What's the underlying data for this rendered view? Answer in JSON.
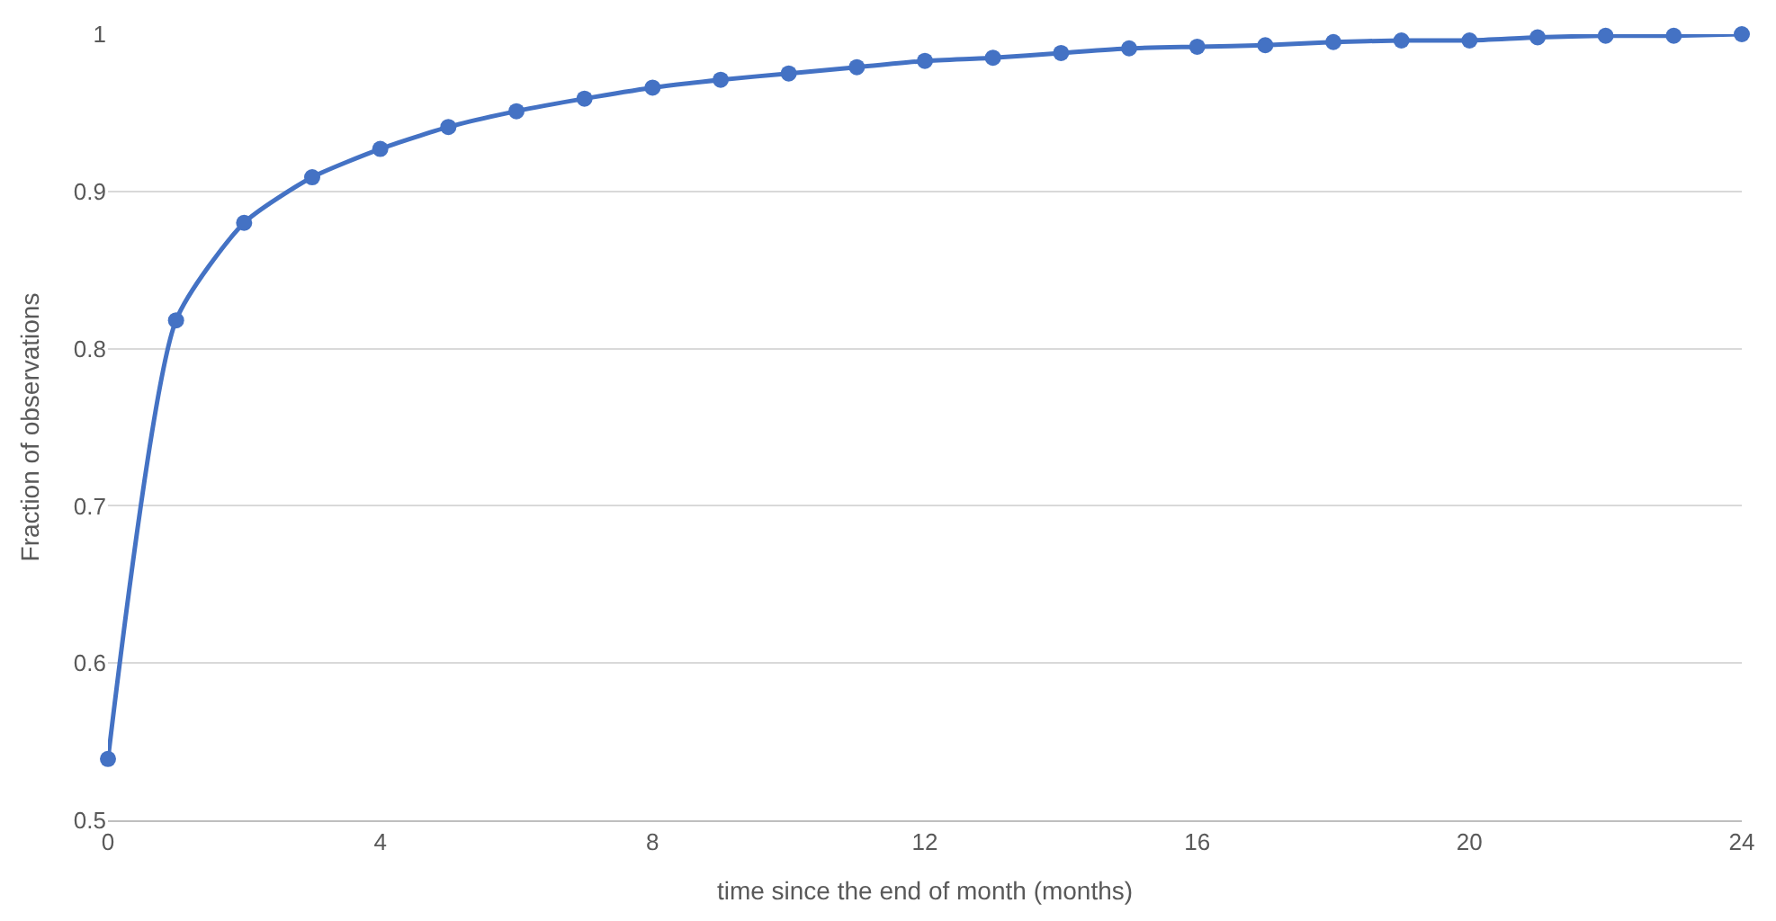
{
  "chart_data": {
    "type": "line",
    "xlabel": "time since the end of month (months)",
    "ylabel": "Fraction of observations",
    "x": [
      0,
      1,
      2,
      3,
      4,
      5,
      6,
      7,
      8,
      9,
      10,
      11,
      12,
      13,
      14,
      15,
      16,
      17,
      18,
      19,
      20,
      21,
      22,
      23,
      24
    ],
    "series": [
      {
        "color": "#4472c4",
        "values": [
          0.539,
          0.818,
          0.88,
          0.909,
          0.927,
          0.941,
          0.951,
          0.959,
          0.966,
          0.971,
          0.975,
          0.979,
          0.983,
          0.985,
          0.988,
          0.991,
          0.992,
          0.993,
          0.995,
          0.996,
          0.996,
          0.998,
          0.999,
          0.999,
          1.0
        ]
      }
    ],
    "xlim": [
      0,
      24
    ],
    "xticks": [
      0,
      4,
      8,
      12,
      16,
      20,
      24
    ],
    "ylim": [
      0.5,
      1
    ],
    "yticks": [
      0.5,
      0.6,
      0.7,
      0.8,
      0.9,
      1
    ],
    "grid": "y",
    "marker": "circle",
    "line_style": "solid"
  }
}
